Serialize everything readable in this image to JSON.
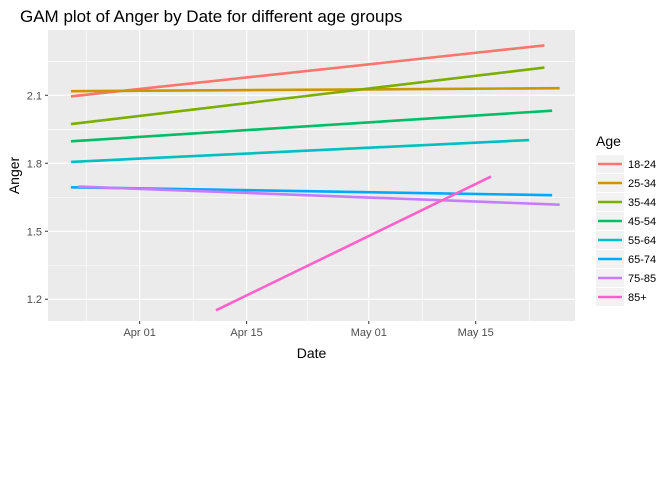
{
  "chart_data": {
    "type": "line",
    "title": "GAM plot of Anger by Date for different age groups",
    "xlabel": "Date",
    "ylabel": "Anger",
    "xlim": [
      "2021-03-20",
      "2021-05-28"
    ],
    "ylim": [
      1.104,
      2.388
    ],
    "x_ticks": [
      {
        "date": "2021-04-01",
        "label": "Apr 01"
      },
      {
        "date": "2021-04-15",
        "label": "Apr 15"
      },
      {
        "date": "2021-05-01",
        "label": "May 01"
      },
      {
        "date": "2021-05-15",
        "label": "May 15"
      }
    ],
    "y_ticks": [
      1.2,
      1.5,
      1.8,
      2.1
    ],
    "y_tick_labels": [
      "1.2",
      "1.5",
      "1.8",
      "2.1"
    ],
    "grid": true,
    "legend": {
      "title": "Age",
      "position": "right"
    },
    "series": [
      {
        "name": "18-24",
        "color": "#F8766D",
        "points": [
          [
            "2021-03-23",
            2.095
          ],
          [
            "2021-05-24",
            2.32
          ]
        ]
      },
      {
        "name": "25-34",
        "color": "#CD9600",
        "points": [
          [
            "2021-03-23",
            2.118
          ],
          [
            "2021-05-26",
            2.131
          ]
        ]
      },
      {
        "name": "35-44",
        "color": "#7CAE00",
        "points": [
          [
            "2021-03-23",
            1.973
          ],
          [
            "2021-05-24",
            2.222
          ]
        ]
      },
      {
        "name": "45-54",
        "color": "#00BE67",
        "points": [
          [
            "2021-03-23",
            1.897
          ],
          [
            "2021-05-25",
            2.032
          ]
        ]
      },
      {
        "name": "55-64",
        "color": "#00BFC4",
        "points": [
          [
            "2021-03-23",
            1.806
          ],
          [
            "2021-05-22",
            1.902
          ]
        ]
      },
      {
        "name": "65-74",
        "color": "#00A9FF",
        "points": [
          [
            "2021-03-23",
            1.694
          ],
          [
            "2021-05-25",
            1.659
          ]
        ]
      },
      {
        "name": "75-85",
        "color": "#C77CFF",
        "points": [
          [
            "2021-03-24",
            1.697
          ],
          [
            "2021-05-26",
            1.617
          ]
        ]
      },
      {
        "name": "85+",
        "color": "#FF61CC",
        "points": [
          [
            "2021-04-11",
            1.151
          ],
          [
            "2021-05-17",
            1.741
          ]
        ]
      }
    ]
  }
}
